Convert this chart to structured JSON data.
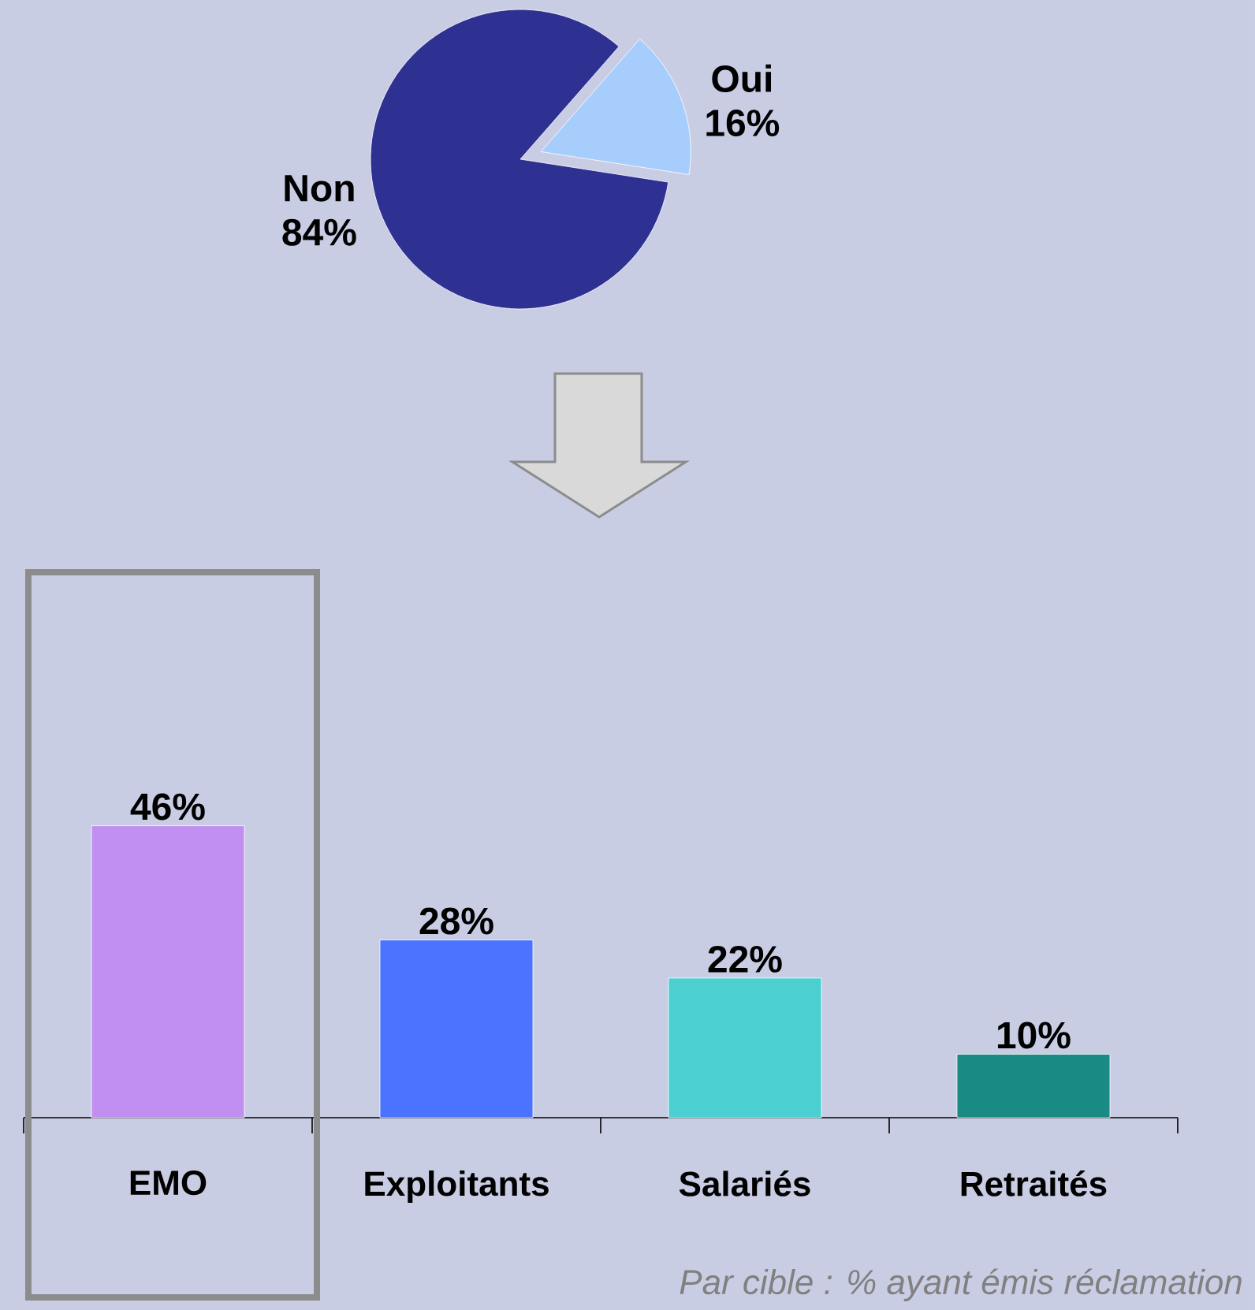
{
  "chart_data": [
    {
      "type": "pie",
      "categories": [
        "Oui",
        "Non"
      ],
      "values": [
        16,
        84
      ],
      "colors": [
        "#a6cdfc",
        "#2e3192"
      ],
      "value_labels": [
        "16%",
        "84%"
      ]
    },
    {
      "type": "bar",
      "categories": [
        "EMO",
        "Exploitants",
        "Salariés",
        "Retraités"
      ],
      "values": [
        46,
        28,
        22,
        10
      ],
      "colors": [
        "#c08ff0",
        "#4a73ff",
        "#4ccfd0",
        "#1a8a85"
      ],
      "value_labels": [
        "46%",
        "28%",
        "22%",
        "10%"
      ],
      "annotations": [
        "Par cible : % ayant émis réclamation"
      ]
    }
  ]
}
